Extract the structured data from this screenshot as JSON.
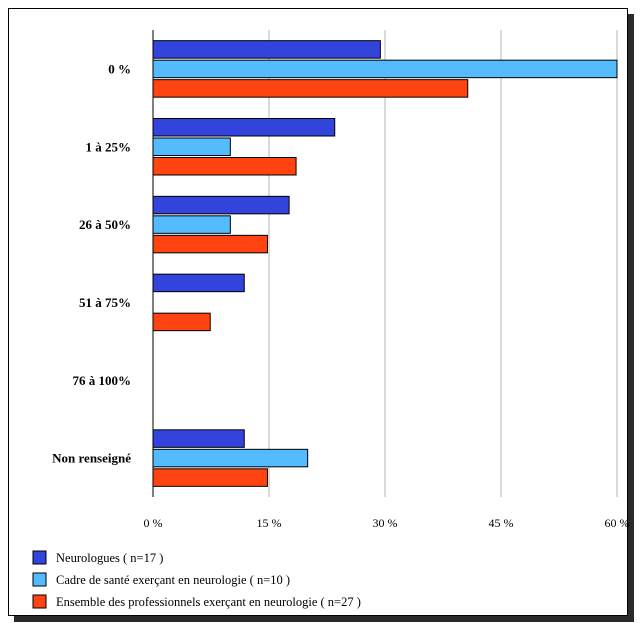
{
  "chart_data": {
    "type": "bar",
    "orientation": "horizontal",
    "categories": [
      "0 %",
      "1 à 25%",
      "26 à 50%",
      "51 à 75%",
      "76 à 100%",
      "Non renseigné"
    ],
    "series": [
      {
        "name": "Neurologues ( n=17 )",
        "color": "#3344dd",
        "values": [
          29.4,
          23.5,
          17.6,
          11.8,
          0,
          11.8
        ]
      },
      {
        "name": "Cadre de santé exerçant en neurologie ( n=10 )",
        "color": "#55bbff",
        "values": [
          60,
          10,
          10,
          0,
          0,
          20
        ]
      },
      {
        "name": "Ensemble des professionnels exerçant en neurologie ( n=27 )",
        "color": "#ff4411",
        "values": [
          40.7,
          18.5,
          14.8,
          7.4,
          0,
          14.8
        ]
      }
    ],
    "xticks": [
      "0 %",
      "15 %",
      "30 %",
      "45 %",
      "60 %"
    ],
    "xtick_values": [
      0,
      15,
      30,
      45,
      60
    ],
    "xlim": [
      0,
      60
    ],
    "grid": true,
    "legend_position": "bottom"
  }
}
